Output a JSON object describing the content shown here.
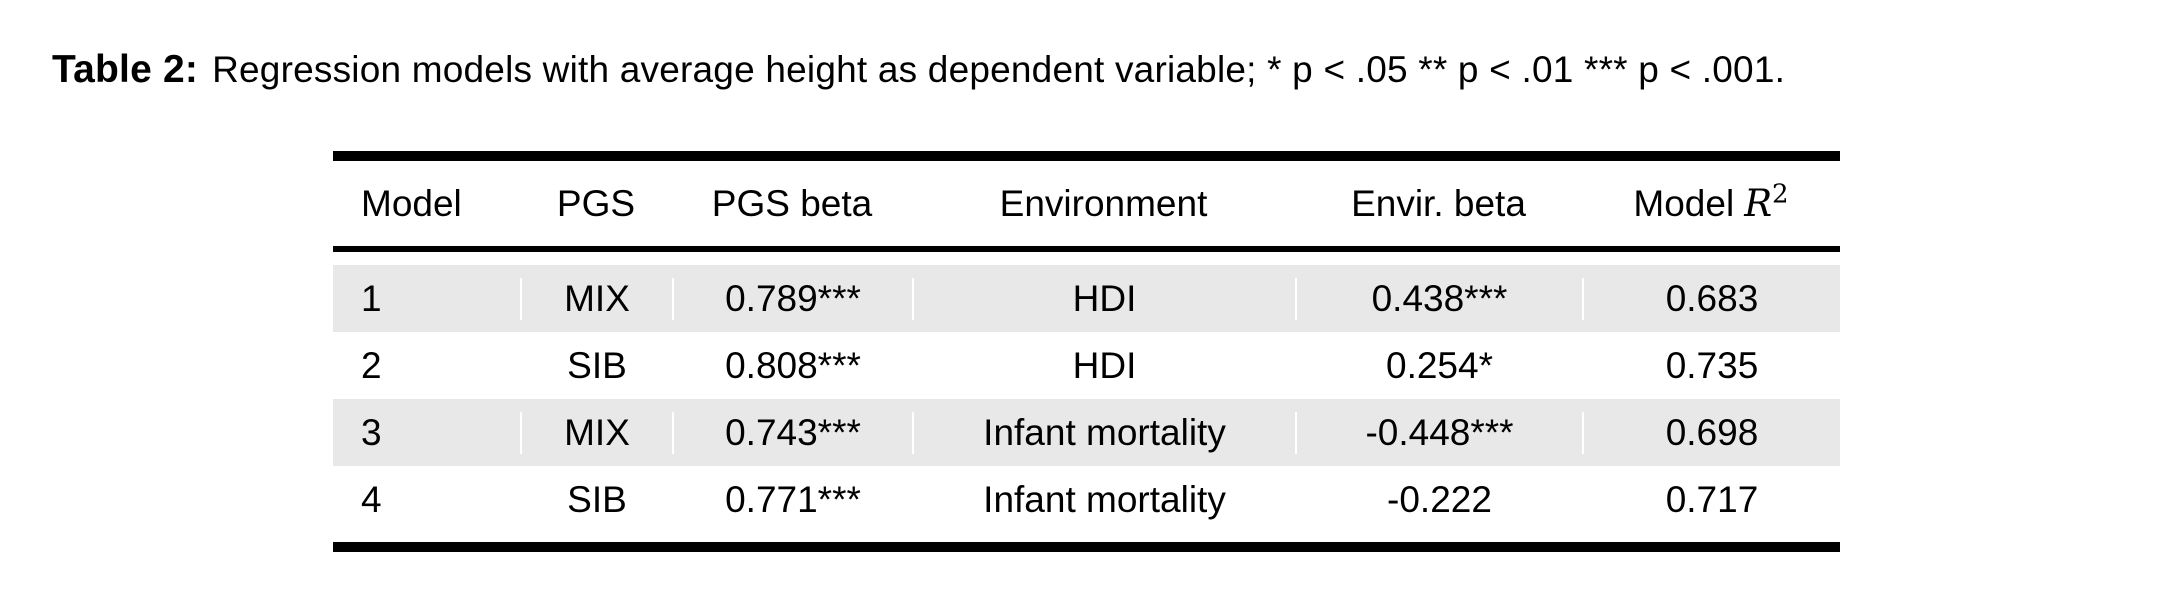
{
  "colors": {
    "row_shade": "#e8e8e8",
    "rule": "#000000",
    "text": "#000000",
    "background": "#ffffff"
  },
  "caption": {
    "label": "Table 2:",
    "text": "Regression models with average height as dependent variable; * p < .05 ** p < .01 *** p < .001."
  },
  "table": {
    "headers": {
      "model": "Model",
      "pgs": "PGS",
      "pgs_beta": "PGS beta",
      "environment": "Environment",
      "envir_beta": "Envir. beta",
      "r2_prefix": "Model",
      "r2_symbol": "R",
      "r2_exponent": "2"
    },
    "rows": [
      {
        "model": "1",
        "pgs": "MIX",
        "pgs_beta": "0.789***",
        "environment": "HDI",
        "envir_beta": "0.438***",
        "r2": "0.683"
      },
      {
        "model": "2",
        "pgs": "SIB",
        "pgs_beta": "0.808***",
        "environment": "HDI",
        "envir_beta": "0.254*",
        "r2": "0.735"
      },
      {
        "model": "3",
        "pgs": "MIX",
        "pgs_beta": "0.743***",
        "environment": "Infant mortality",
        "envir_beta": "-0.448***",
        "r2": "0.698"
      },
      {
        "model": "4",
        "pgs": "SIB",
        "pgs_beta": "0.771***",
        "environment": "Infant mortality",
        "envir_beta": "-0.222",
        "r2": "0.717"
      }
    ]
  }
}
